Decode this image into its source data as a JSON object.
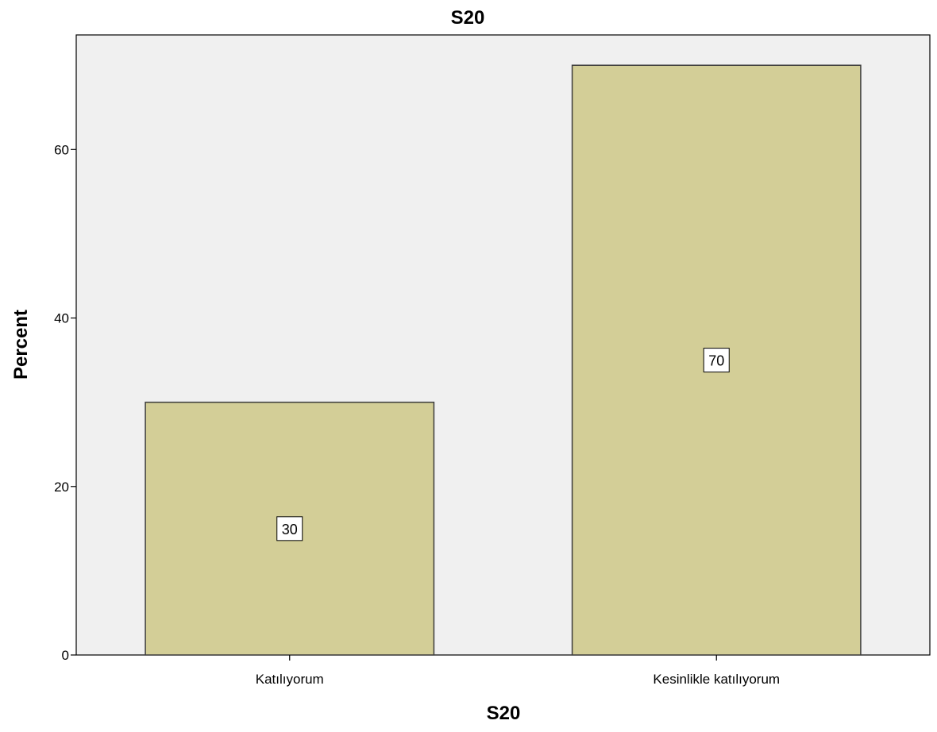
{
  "chart_data": {
    "type": "bar",
    "title": "S20",
    "xlabel": "S20",
    "ylabel": "Percent",
    "categories": [
      "Katılıyorum",
      "Kesinlikle katılıyorum"
    ],
    "values": [
      30,
      70
    ],
    "data_labels": [
      "30",
      "70"
    ],
    "ylim": [
      0,
      73.6
    ],
    "yticks": [
      0,
      20,
      40,
      60
    ],
    "grid": false,
    "legend": "none",
    "colors": {
      "plot_background": "#f0f0f0",
      "bar_fill": "#d3ce97",
      "bar_stroke": "#3c3c3c",
      "axis": "#000000"
    }
  }
}
